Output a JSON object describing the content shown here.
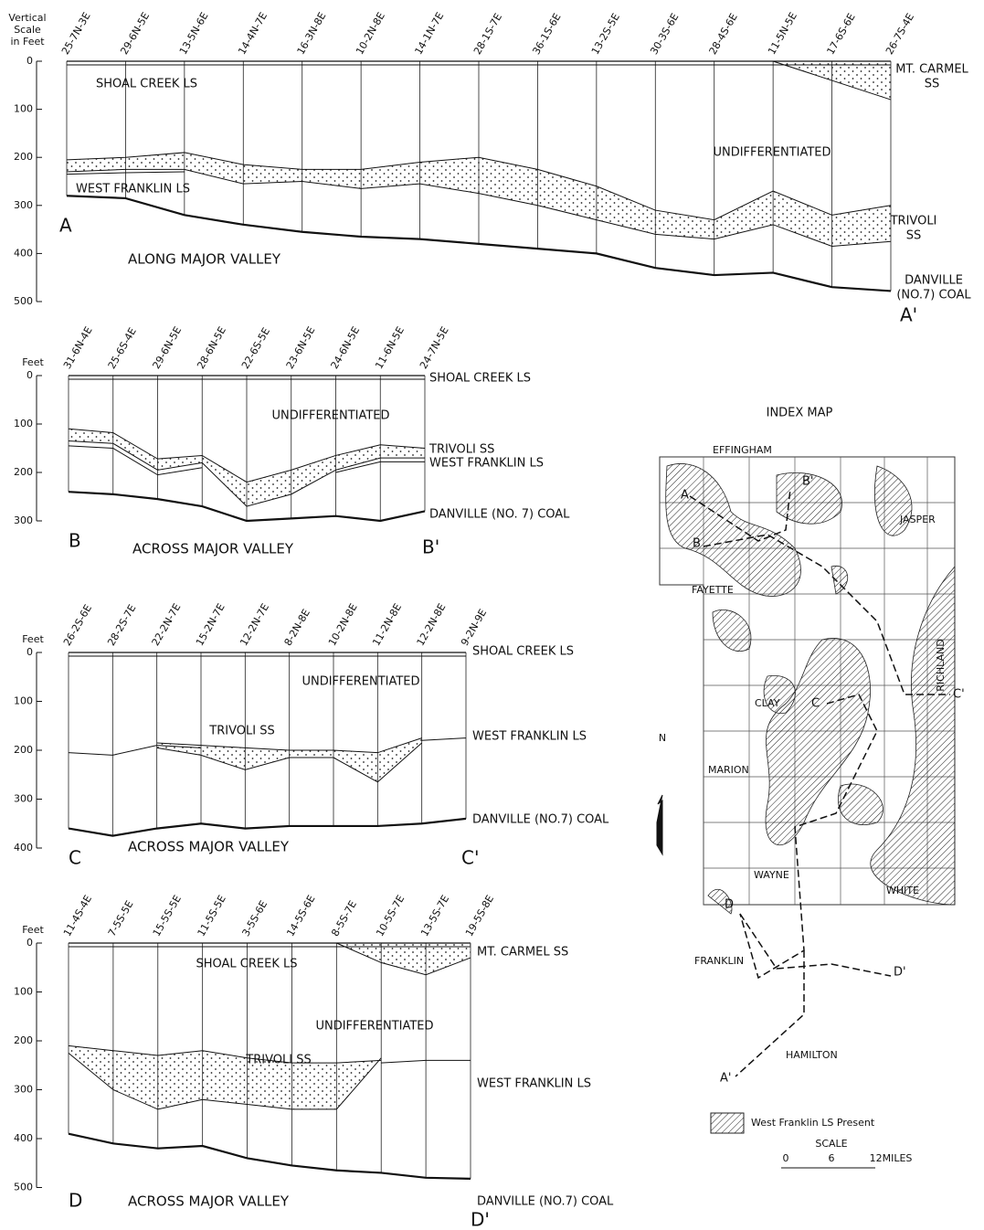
{
  "sections": [
    {
      "scale_title": [
        "Vertical",
        "Scale",
        "in Feet"
      ],
      "yticks": [
        0,
        100,
        200,
        300,
        400,
        500
      ],
      "wells": [
        "25-7N-3E",
        "29-6N-5E",
        "13-5N-6E",
        "14-4N-7E",
        "16-3N-8E",
        "10-2N-8E",
        "14-1N-7E",
        "28-1S-7E",
        "36-1S-6E",
        "13-2S-5E",
        "30-3S-6E",
        "28-4S-6E",
        "11-5N-5E",
        "17-6S-6E",
        "26-7S-4E"
      ],
      "horizons": [
        [
          null,
          null,
          null,
          null,
          null,
          null,
          null,
          null,
          null,
          null,
          null,
          null,
          0,
          40,
          80
        ],
        [
          205,
          200,
          190,
          215,
          225,
          225,
          210,
          200,
          225,
          260,
          310,
          330,
          270,
          320,
          300
        ],
        [
          230,
          225,
          225,
          255,
          250,
          265,
          255,
          275,
          300,
          330,
          360,
          370,
          340,
          385,
          375
        ],
        [
          235,
          232,
          230,
          null,
          null,
          null,
          null,
          null,
          null,
          null,
          null,
          null,
          null,
          null,
          null
        ],
        [
          280,
          285,
          320,
          340,
          355,
          365,
          370,
          380,
          390,
          400,
          430,
          445,
          440,
          470,
          478
        ]
      ],
      "units": [
        "SHOAL CREEK LS",
        [
          "MT. CARMEL",
          "SS"
        ],
        "UNDIFFERENTIATED",
        "WEST FRANKLIN LS",
        [
          "TRIVOLI",
          "SS"
        ],
        [
          "DANVILLE",
          "(NO.7) COAL"
        ]
      ],
      "letters": [
        "A",
        "A'"
      ],
      "subtitle": "ALONG MAJOR VALLEY"
    },
    {
      "scale_title": [
        "Feet"
      ],
      "yticks": [
        0,
        100,
        200,
        300
      ],
      "wells": [
        "31-6N-4E",
        "25-6S-4E",
        "29-6N-5E",
        "28-6N-5E",
        "22-6S-5E",
        "23-6N-5E",
        "24-6N-5E",
        "11-6N-5E",
        "24-7N-5E"
      ],
      "horizons": [
        [
          110,
          118,
          172,
          165,
          220,
          195,
          165,
          143,
          150
        ],
        [
          135,
          140,
          195,
          180,
          270,
          245,
          195,
          170,
          170
        ],
        [
          145,
          150,
          205,
          190,
          null,
          null,
          200,
          178,
          178
        ],
        [
          240,
          245,
          255,
          270,
          300,
          295,
          290,
          300,
          280
        ]
      ],
      "units": [
        "SHOAL CREEK LS",
        "UNDIFFERENTIATED",
        "TRIVOLI SS",
        "WEST FRANKLIN LS",
        "DANVILLE (NO. 7) COAL"
      ],
      "letters": [
        "B",
        "B'"
      ],
      "subtitle": "ACROSS MAJOR VALLEY"
    },
    {
      "scale_title": [
        "Feet"
      ],
      "yticks": [
        0,
        100,
        200,
        300,
        400
      ],
      "wells": [
        "26-2S-6E",
        "28-2S-7E",
        "22-2N-7E",
        "15-2N-7E",
        "12-2N-7E",
        "8-2N-8E",
        "10-2N-8E",
        "11-2N-8E",
        "12-2N-8E",
        "9-2N-9E"
      ],
      "horizons": [
        [
          null,
          null,
          185,
          190,
          195,
          200,
          200,
          205,
          175,
          null
        ],
        [
          null,
          null,
          195,
          210,
          240,
          215,
          215,
          265,
          185,
          null
        ],
        [
          205,
          210,
          190,
          195,
          null,
          null,
          null,
          null,
          180,
          175
        ],
        [
          360,
          375,
          360,
          350,
          360,
          355,
          355,
          355,
          350,
          340
        ]
      ],
      "units": [
        "SHOAL CREEK LS",
        "UNDIFFERENTIATED",
        "TRIVOLI SS",
        "WEST FRANKLIN LS",
        "DANVILLE (NO.7) COAL"
      ],
      "letters": [
        "C",
        "C'"
      ],
      "subtitle": "ACROSS MAJOR VALLEY"
    },
    {
      "scale_title": [
        "Feet"
      ],
      "yticks": [
        0,
        100,
        200,
        300,
        400,
        500
      ],
      "wells": [
        "11-4S-4E",
        "7-5S-5E",
        "15-5S-5E",
        "11-5S-5E",
        "3-5S-6E",
        "14-5S-6E",
        "8-5S-7E",
        "10-5S-7E",
        "13-5S-7E",
        "19-5S-8E"
      ],
      "horizons": [
        [
          null,
          null,
          null,
          null,
          null,
          null,
          0,
          40,
          65,
          30
        ],
        [
          210,
          220,
          230,
          220,
          235,
          245,
          245,
          240,
          null,
          null
        ],
        [
          225,
          300,
          340,
          320,
          330,
          340,
          340,
          235,
          null,
          null
        ],
        [
          220,
          null,
          null,
          null,
          null,
          null,
          null,
          245,
          240,
          240
        ],
        [
          390,
          410,
          420,
          415,
          440,
          455,
          465,
          470,
          480,
          482
        ]
      ],
      "units": [
        "MT. CARMEL SS",
        "SHOAL CREEK LS",
        "UNDIFFERENTIATED",
        "TRIVOLI SS",
        "WEST FRANKLIN LS",
        "DANVILLE (NO.7) COAL"
      ],
      "letters": [
        "D",
        "D'"
      ],
      "subtitle": "ACROSS MAJOR VALLEY"
    }
  ],
  "index_map": {
    "title": "INDEX MAP",
    "counties": [
      "EFFINGHAM",
      "JASPER",
      "FAYETTE",
      "RICHLAND",
      "CLAY",
      "MARION",
      "WAYNE",
      "WHITE",
      "FRANKLIN",
      "HAMILTON"
    ],
    "points": [
      "A",
      "B'",
      "B",
      "C'",
      "C",
      "D",
      "D'",
      "A'"
    ],
    "north": "N",
    "legend": "West Franklin LS Present",
    "scale_title": "SCALE",
    "scale_labels": [
      "0",
      "6",
      "12MILES"
    ]
  }
}
